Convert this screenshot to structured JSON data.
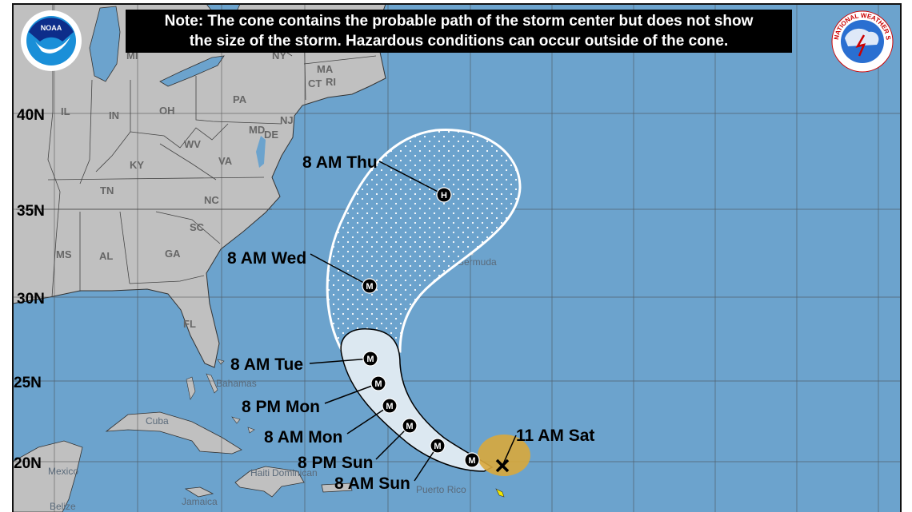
{
  "note": {
    "line1": "Note: The cone contains the probable path of the storm center but does not show",
    "line2": "the size of the storm. Hazardous conditions can occur outside of the cone."
  },
  "logos": {
    "left": "NOAA",
    "right": "NATIONAL WEATHER SERVICE"
  },
  "latitude_labels": [
    "40N",
    "35N",
    "30N",
    "25N",
    "20N"
  ],
  "state_labels": [
    "MI",
    "NY",
    "MA",
    "CT",
    "RI",
    "PA",
    "IL",
    "IN",
    "OH",
    "NJ",
    "MD",
    "DE",
    "WV",
    "VA",
    "KY",
    "TN",
    "NC",
    "SC",
    "GA",
    "MS",
    "AL",
    "FL"
  ],
  "place_labels": {
    "bermuda": "Bermuda",
    "bahamas": "Bahamas",
    "cuba": "Cuba",
    "mexico": "Mexico",
    "belize": "Belize",
    "jamaica": "Jamaica",
    "haiti": "Haiti",
    "dominican": "Dominican",
    "puerto_rico": "Puerto Rico"
  },
  "forecast_points": [
    {
      "label": "11 AM Sat",
      "marker": "X"
    },
    {
      "label": "8 AM Sun",
      "marker": "M"
    },
    {
      "label": "8 PM Sun",
      "marker": "M"
    },
    {
      "label": "8 AM Mon",
      "marker": "M"
    },
    {
      "label": "8 PM Mon",
      "marker": "M"
    },
    {
      "label": "8 AM Tue",
      "marker": "M"
    },
    {
      "label": "8 AM Wed",
      "marker": "M"
    },
    {
      "label": "8 AM Thu",
      "marker": "H"
    }
  ],
  "colors": {
    "water": "#6ca3cd",
    "land": "#c0c0c0",
    "cone_near": "#dce8f1",
    "current_wind": "#d9a83c"
  }
}
